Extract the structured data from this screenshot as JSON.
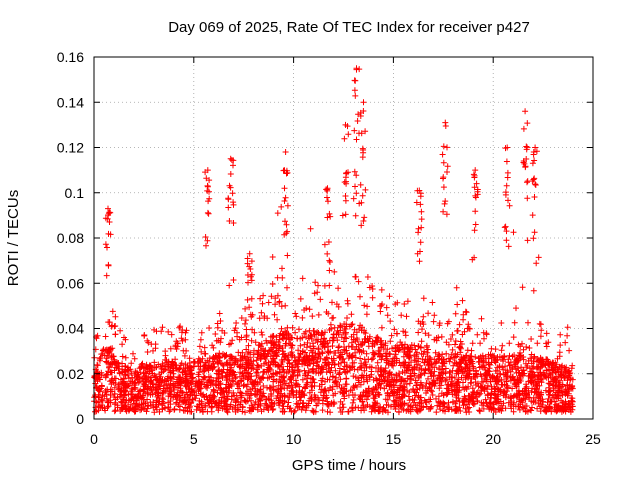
{
  "chart_data": {
    "type": "scatter",
    "title": "Day 069 of 2025, Rate Of TEC Index for receiver p427",
    "xlabel": "GPS time / hours",
    "ylabel": "ROTI / TECUs",
    "xlim": [
      0,
      25
    ],
    "ylim": [
      0,
      0.16
    ],
    "x_ticks": [
      0,
      5,
      10,
      15,
      20,
      25
    ],
    "x_tick_labels": [
      "0",
      "5",
      "10",
      "15",
      "20",
      "25"
    ],
    "y_ticks": [
      0,
      0.02,
      0.04,
      0.06,
      0.08,
      0.1,
      0.12,
      0.14,
      0.16
    ],
    "y_tick_labels": [
      "0",
      "0.02",
      "0.04",
      "0.06",
      "0.08",
      "0.1",
      "0.12",
      "0.14",
      "0.16"
    ],
    "grid": true,
    "marker": "plus",
    "color": "#ff0000",
    "data_extent_x": [
      0,
      24
    ],
    "envelope": {
      "hours": [
        0,
        0.5,
        1,
        1.5,
        2,
        2.5,
        3,
        3.5,
        4,
        4.5,
        5,
        5.5,
        6,
        6.5,
        7,
        7.5,
        8,
        8.5,
        9,
        9.5,
        10,
        10.5,
        11,
        11.5,
        12,
        12.5,
        13,
        13.5,
        14,
        14.5,
        15,
        15.5,
        16,
        16.5,
        17,
        17.5,
        18,
        18.5,
        19,
        19.5,
        20,
        20.5,
        21,
        21.5,
        22,
        22.5,
        23,
        23.5,
        24
      ],
      "typical_roti": [
        0.012,
        0.02,
        0.018,
        0.014,
        0.012,
        0.014,
        0.015,
        0.016,
        0.016,
        0.015,
        0.015,
        0.016,
        0.017,
        0.018,
        0.016,
        0.017,
        0.019,
        0.021,
        0.023,
        0.025,
        0.025,
        0.024,
        0.024,
        0.024,
        0.025,
        0.026,
        0.026,
        0.025,
        0.023,
        0.021,
        0.02,
        0.02,
        0.02,
        0.019,
        0.018,
        0.018,
        0.018,
        0.018,
        0.017,
        0.017,
        0.017,
        0.017,
        0.017,
        0.017,
        0.016,
        0.016,
        0.015,
        0.014,
        0.012
      ],
      "upper_roti": [
        0.04,
        0.08,
        0.065,
        0.045,
        0.04,
        0.042,
        0.048,
        0.052,
        0.048,
        0.042,
        0.04,
        0.065,
        0.07,
        0.05,
        0.075,
        0.05,
        0.055,
        0.065,
        0.085,
        0.1,
        0.085,
        0.09,
        0.085,
        0.07,
        0.08,
        0.11,
        0.13,
        0.1,
        0.08,
        0.06,
        0.055,
        0.055,
        0.075,
        0.065,
        0.06,
        0.065,
        0.065,
        0.06,
        0.075,
        0.065,
        0.055,
        0.08,
        0.09,
        0.08,
        0.1,
        0.065,
        0.055,
        0.05,
        0.035
      ]
    },
    "peaks": [
      {
        "x": 0.7,
        "y": 0.093
      },
      {
        "x": 5.7,
        "y": 0.11
      },
      {
        "x": 6.85,
        "y": 0.115
      },
      {
        "x": 7.8,
        "y": 0.073
      },
      {
        "x": 9.6,
        "y": 0.118
      },
      {
        "x": 11.7,
        "y": 0.102
      },
      {
        "x": 12.6,
        "y": 0.13
      },
      {
        "x": 13.15,
        "y": 0.155
      },
      {
        "x": 13.5,
        "y": 0.14
      },
      {
        "x": 16.3,
        "y": 0.101
      },
      {
        "x": 17.6,
        "y": 0.131
      },
      {
        "x": 19.1,
        "y": 0.11
      },
      {
        "x": 20.7,
        "y": 0.12
      },
      {
        "x": 21.6,
        "y": 0.136
      },
      {
        "x": 22.1,
        "y": 0.12
      }
    ]
  }
}
